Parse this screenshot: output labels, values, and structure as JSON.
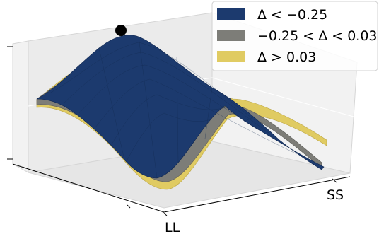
{
  "chart_data": {
    "type": "surface",
    "x_tick_labels": [
      "LL"
    ],
    "y_tick_labels": [
      "SS"
    ],
    "legend_placement": "top-right",
    "grid": true,
    "series": [
      {
        "name": "Δ < −0.25",
        "color": "#1c3a6e"
      },
      {
        "name": "−0.25 < Δ < 0.03",
        "color": "#7d7d78"
      },
      {
        "name": "Δ > 0.03",
        "color": "#e0cb62"
      }
    ],
    "marker": {
      "type": "point",
      "color": "#000000"
    }
  }
}
